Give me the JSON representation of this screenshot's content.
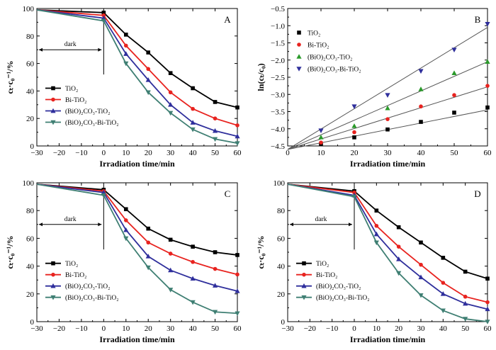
{
  "chart_data": [
    {
      "panel": "A",
      "type": "line",
      "xlabel": "Irradiation time/min",
      "ylabel": "cₜ·c₀⁻¹/%",
      "xlim": [
        -30,
        60
      ],
      "ylim": [
        0,
        100
      ],
      "xticks": [
        -30,
        -20,
        -10,
        0,
        10,
        20,
        30,
        40,
        50,
        60
      ],
      "yticks": [
        0,
        20,
        40,
        60,
        80,
        100
      ],
      "annotation": "dark",
      "legend_position": "bottom-left",
      "x": [
        -30,
        0,
        10,
        20,
        30,
        40,
        50,
        60
      ],
      "series": [
        {
          "name": "TiO₂",
          "color": "#000000",
          "marker": "square",
          "values": [
            99,
            97,
            81,
            68,
            53,
            42,
            32,
            28
          ]
        },
        {
          "name": "Bi-TiO₂",
          "color": "#e8231f",
          "marker": "circle",
          "values": [
            99,
            95,
            73,
            56,
            39,
            27,
            20,
            15
          ]
        },
        {
          "name": "(BiO)₂CO₃-TiO₂",
          "color": "#2f2f9c",
          "marker": "triangle",
          "values": [
            99,
            93,
            67,
            48,
            30,
            17,
            11,
            7
          ]
        },
        {
          "name": "(BiO)₂CO₃-Bi-TiO₂",
          "color": "#3f7f73",
          "marker": "triangle-down",
          "values": [
            99,
            91,
            60,
            39,
            24,
            12,
            5,
            2
          ]
        }
      ]
    },
    {
      "panel": "B",
      "type": "scatter",
      "xlabel": "Irradiation time/min",
      "ylabel": "ln(cₜ/c₀)",
      "xlim": [
        0,
        60
      ],
      "ylim": [
        -4.5,
        -0.5
      ],
      "xticks": [
        0,
        10,
        20,
        30,
        40,
        50,
        60
      ],
      "yticks": [
        -4.5,
        -4.0,
        -3.5,
        -3.0,
        -2.5,
        -2.0,
        -1.5,
        -1.0,
        -0.5
      ],
      "legend_position": "top-left",
      "x": [
        10,
        20,
        30,
        40,
        50,
        60
      ],
      "fit_origin": [
        0,
        -4.6
      ],
      "series": [
        {
          "name": "TiO₂",
          "color": "#000000",
          "marker": "square",
          "values": [
            -4.45,
            -4.25,
            -4.02,
            -3.8,
            -3.53,
            -3.38
          ],
          "fit_end": -3.45
        },
        {
          "name": "Bi-TiO₂",
          "color": "#e8231f",
          "marker": "circle",
          "values": [
            -4.4,
            -4.1,
            -3.72,
            -3.35,
            -3.02,
            -2.75
          ],
          "fit_end": -2.78
        },
        {
          "name": "(BiO)₂CO₃-TiO₂",
          "color": "#2a9a2a",
          "marker": "triangle",
          "values": [
            -4.25,
            -3.92,
            -3.4,
            -2.85,
            -2.38,
            -2.05
          ],
          "fit_end": -2.05
        },
        {
          "name": "(BiO)₂CO₃-Bi-TiO₂",
          "color": "#2f2f9c",
          "marker": "triangle-down",
          "values": [
            -4.05,
            -3.35,
            -3.02,
            -2.32,
            -1.7,
            -0.95
          ],
          "fit_end": -1.05
        }
      ]
    },
    {
      "panel": "C",
      "type": "line",
      "xlabel": "Irradiation time/min",
      "ylabel": "cₜ·c₀⁻¹/%",
      "xlim": [
        -30,
        60
      ],
      "ylim": [
        0,
        100
      ],
      "xticks": [
        -30,
        -20,
        -10,
        0,
        10,
        20,
        30,
        40,
        50,
        60
      ],
      "yticks": [
        0,
        20,
        40,
        60,
        80,
        100
      ],
      "annotation": "dark",
      "legend_position": "bottom-left",
      "x": [
        -30,
        0,
        10,
        20,
        30,
        40,
        50,
        60
      ],
      "series": [
        {
          "name": "TiO₂",
          "color": "#000000",
          "marker": "square",
          "values": [
            99,
            95,
            81,
            67,
            59,
            54,
            50,
            48
          ]
        },
        {
          "name": "Bi-TiO₂",
          "color": "#e8231f",
          "marker": "circle",
          "values": [
            99,
            94,
            73,
            57,
            49,
            43,
            38,
            34
          ]
        },
        {
          "name": "(BiO)₂CO₃-TiO₂",
          "color": "#2f2f9c",
          "marker": "triangle",
          "values": [
            99,
            93,
            66,
            47,
            37,
            31,
            26,
            22
          ]
        },
        {
          "name": "(BiO)₂CO₃-Bi-TiO₂",
          "color": "#3f7f73",
          "marker": "triangle-down",
          "values": [
            99,
            91,
            60,
            39,
            23,
            14,
            7,
            6
          ]
        }
      ]
    },
    {
      "panel": "D",
      "type": "line",
      "xlabel": "Irradiation time/min",
      "ylabel": "cₜ·c₀⁻¹/%",
      "xlim": [
        -30,
        60
      ],
      "ylim": [
        0,
        100
      ],
      "xticks": [
        -30,
        -20,
        -10,
        0,
        10,
        20,
        30,
        40,
        50,
        60
      ],
      "yticks": [
        0,
        20,
        40,
        60,
        80,
        100
      ],
      "annotation": "dark",
      "legend_position": "bottom-left",
      "x": [
        -30,
        0,
        10,
        20,
        30,
        40,
        50,
        60
      ],
      "series": [
        {
          "name": "TiO₂",
          "color": "#000000",
          "marker": "square",
          "values": [
            99,
            94,
            80,
            68,
            57,
            46,
            36,
            31
          ]
        },
        {
          "name": "Bi-TiO₂",
          "color": "#e8231f",
          "marker": "circle",
          "values": [
            99,
            93,
            69,
            54,
            41,
            28,
            18,
            14
          ]
        },
        {
          "name": "(BiO)₂CO₃-TiO₂",
          "color": "#2f2f9c",
          "marker": "triangle",
          "values": [
            99,
            91,
            63,
            45,
            32,
            20,
            13,
            9
          ]
        },
        {
          "name": "(BiO)₂CO₃-Bi-TiO₂",
          "color": "#3f7f73",
          "marker": "triangle-down",
          "values": [
            99,
            90,
            57,
            35,
            19,
            8,
            2,
            0
          ]
        }
      ]
    }
  ]
}
